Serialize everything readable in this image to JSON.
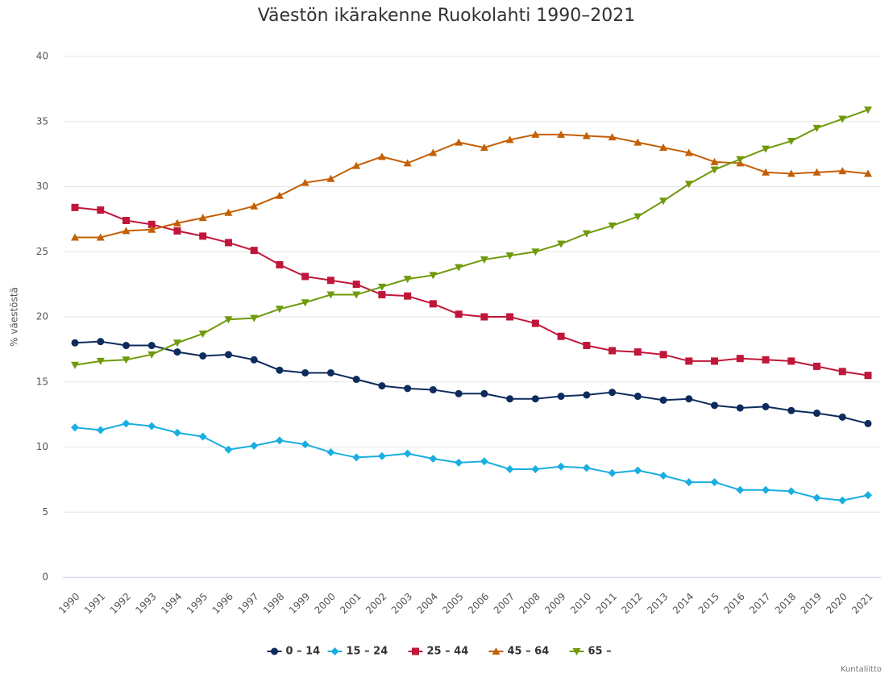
{
  "chart_data": {
    "type": "line",
    "title": "Väestön ikärakenne Ruokolahti 1990–2021",
    "y_label": "% väestöstä",
    "credit": "Kuntaliitto",
    "categories": [
      "1990",
      "1991",
      "1992",
      "1993",
      "1994",
      "1995",
      "1996",
      "1997",
      "1998",
      "1999",
      "2000",
      "2001",
      "2002",
      "2003",
      "2004",
      "2005",
      "2006",
      "2007",
      "2008",
      "2009",
      "2010",
      "2011",
      "2012",
      "2013",
      "2014",
      "2015",
      "2016",
      "2017",
      "2018",
      "2019",
      "2020",
      "2021"
    ],
    "ylim": [
      0,
      40
    ],
    "yticks": [
      0,
      5,
      10,
      15,
      20,
      25,
      30,
      35,
      40
    ],
    "grid": true,
    "legend": "bottom",
    "series": [
      {
        "name": "0 – 14",
        "color": "#0d2b5c",
        "marker": "circle",
        "values": [
          18.0,
          18.1,
          17.8,
          17.8,
          17.3,
          17.0,
          17.1,
          16.7,
          15.9,
          15.7,
          15.7,
          15.2,
          14.7,
          14.5,
          14.4,
          14.1,
          14.1,
          13.7,
          13.7,
          13.9,
          14.0,
          14.2,
          13.9,
          13.6,
          13.7,
          13.2,
          13.0,
          13.1,
          12.8,
          12.6,
          12.3,
          11.8
        ]
      },
      {
        "name": "15 – 24",
        "color": "#1aaee0",
        "marker": "diamond",
        "values": [
          11.5,
          11.3,
          11.8,
          11.6,
          11.1,
          10.8,
          9.8,
          10.1,
          10.5,
          10.2,
          9.6,
          9.2,
          9.3,
          9.5,
          9.1,
          8.8,
          8.9,
          8.3,
          8.3,
          8.5,
          8.4,
          8.0,
          8.2,
          7.8,
          7.3,
          7.3,
          6.7,
          6.7,
          6.6,
          6.1,
          5.9,
          6.3
        ]
      },
      {
        "name": "25 – 44",
        "color": "#c0163a",
        "marker": "square",
        "values": [
          28.4,
          28.2,
          27.4,
          27.1,
          26.6,
          26.2,
          25.7,
          25.1,
          24.0,
          23.1,
          22.8,
          22.5,
          21.7,
          21.6,
          21.0,
          20.2,
          20.0,
          20.0,
          19.5,
          18.5,
          17.8,
          17.4,
          17.3,
          17.1,
          16.6,
          16.6,
          16.8,
          16.7,
          16.6,
          16.2,
          15.8,
          15.5
        ]
      },
      {
        "name": "45 – 64",
        "color": "#c45f04",
        "marker": "triangle",
        "values": [
          26.1,
          26.1,
          26.6,
          26.7,
          27.2,
          27.6,
          28.0,
          28.5,
          29.3,
          30.3,
          30.6,
          31.6,
          32.3,
          31.8,
          32.6,
          33.4,
          33.0,
          33.6,
          34.0,
          34.0,
          33.9,
          33.8,
          33.4,
          33.0,
          32.6,
          31.9,
          31.8,
          31.1,
          31.0,
          31.1,
          31.2,
          31.0
        ]
      },
      {
        "name": "65 –",
        "color": "#6f9a0a",
        "marker": "triangle-down",
        "values": [
          16.3,
          16.6,
          16.7,
          17.1,
          18.0,
          18.7,
          19.8,
          19.9,
          20.6,
          21.1,
          21.7,
          21.7,
          22.3,
          22.9,
          23.2,
          23.8,
          24.4,
          24.7,
          25.0,
          25.6,
          26.4,
          27.0,
          27.7,
          28.9,
          30.2,
          31.3,
          32.1,
          32.9,
          33.5,
          34.5,
          35.2,
          35.9
        ]
      }
    ]
  }
}
